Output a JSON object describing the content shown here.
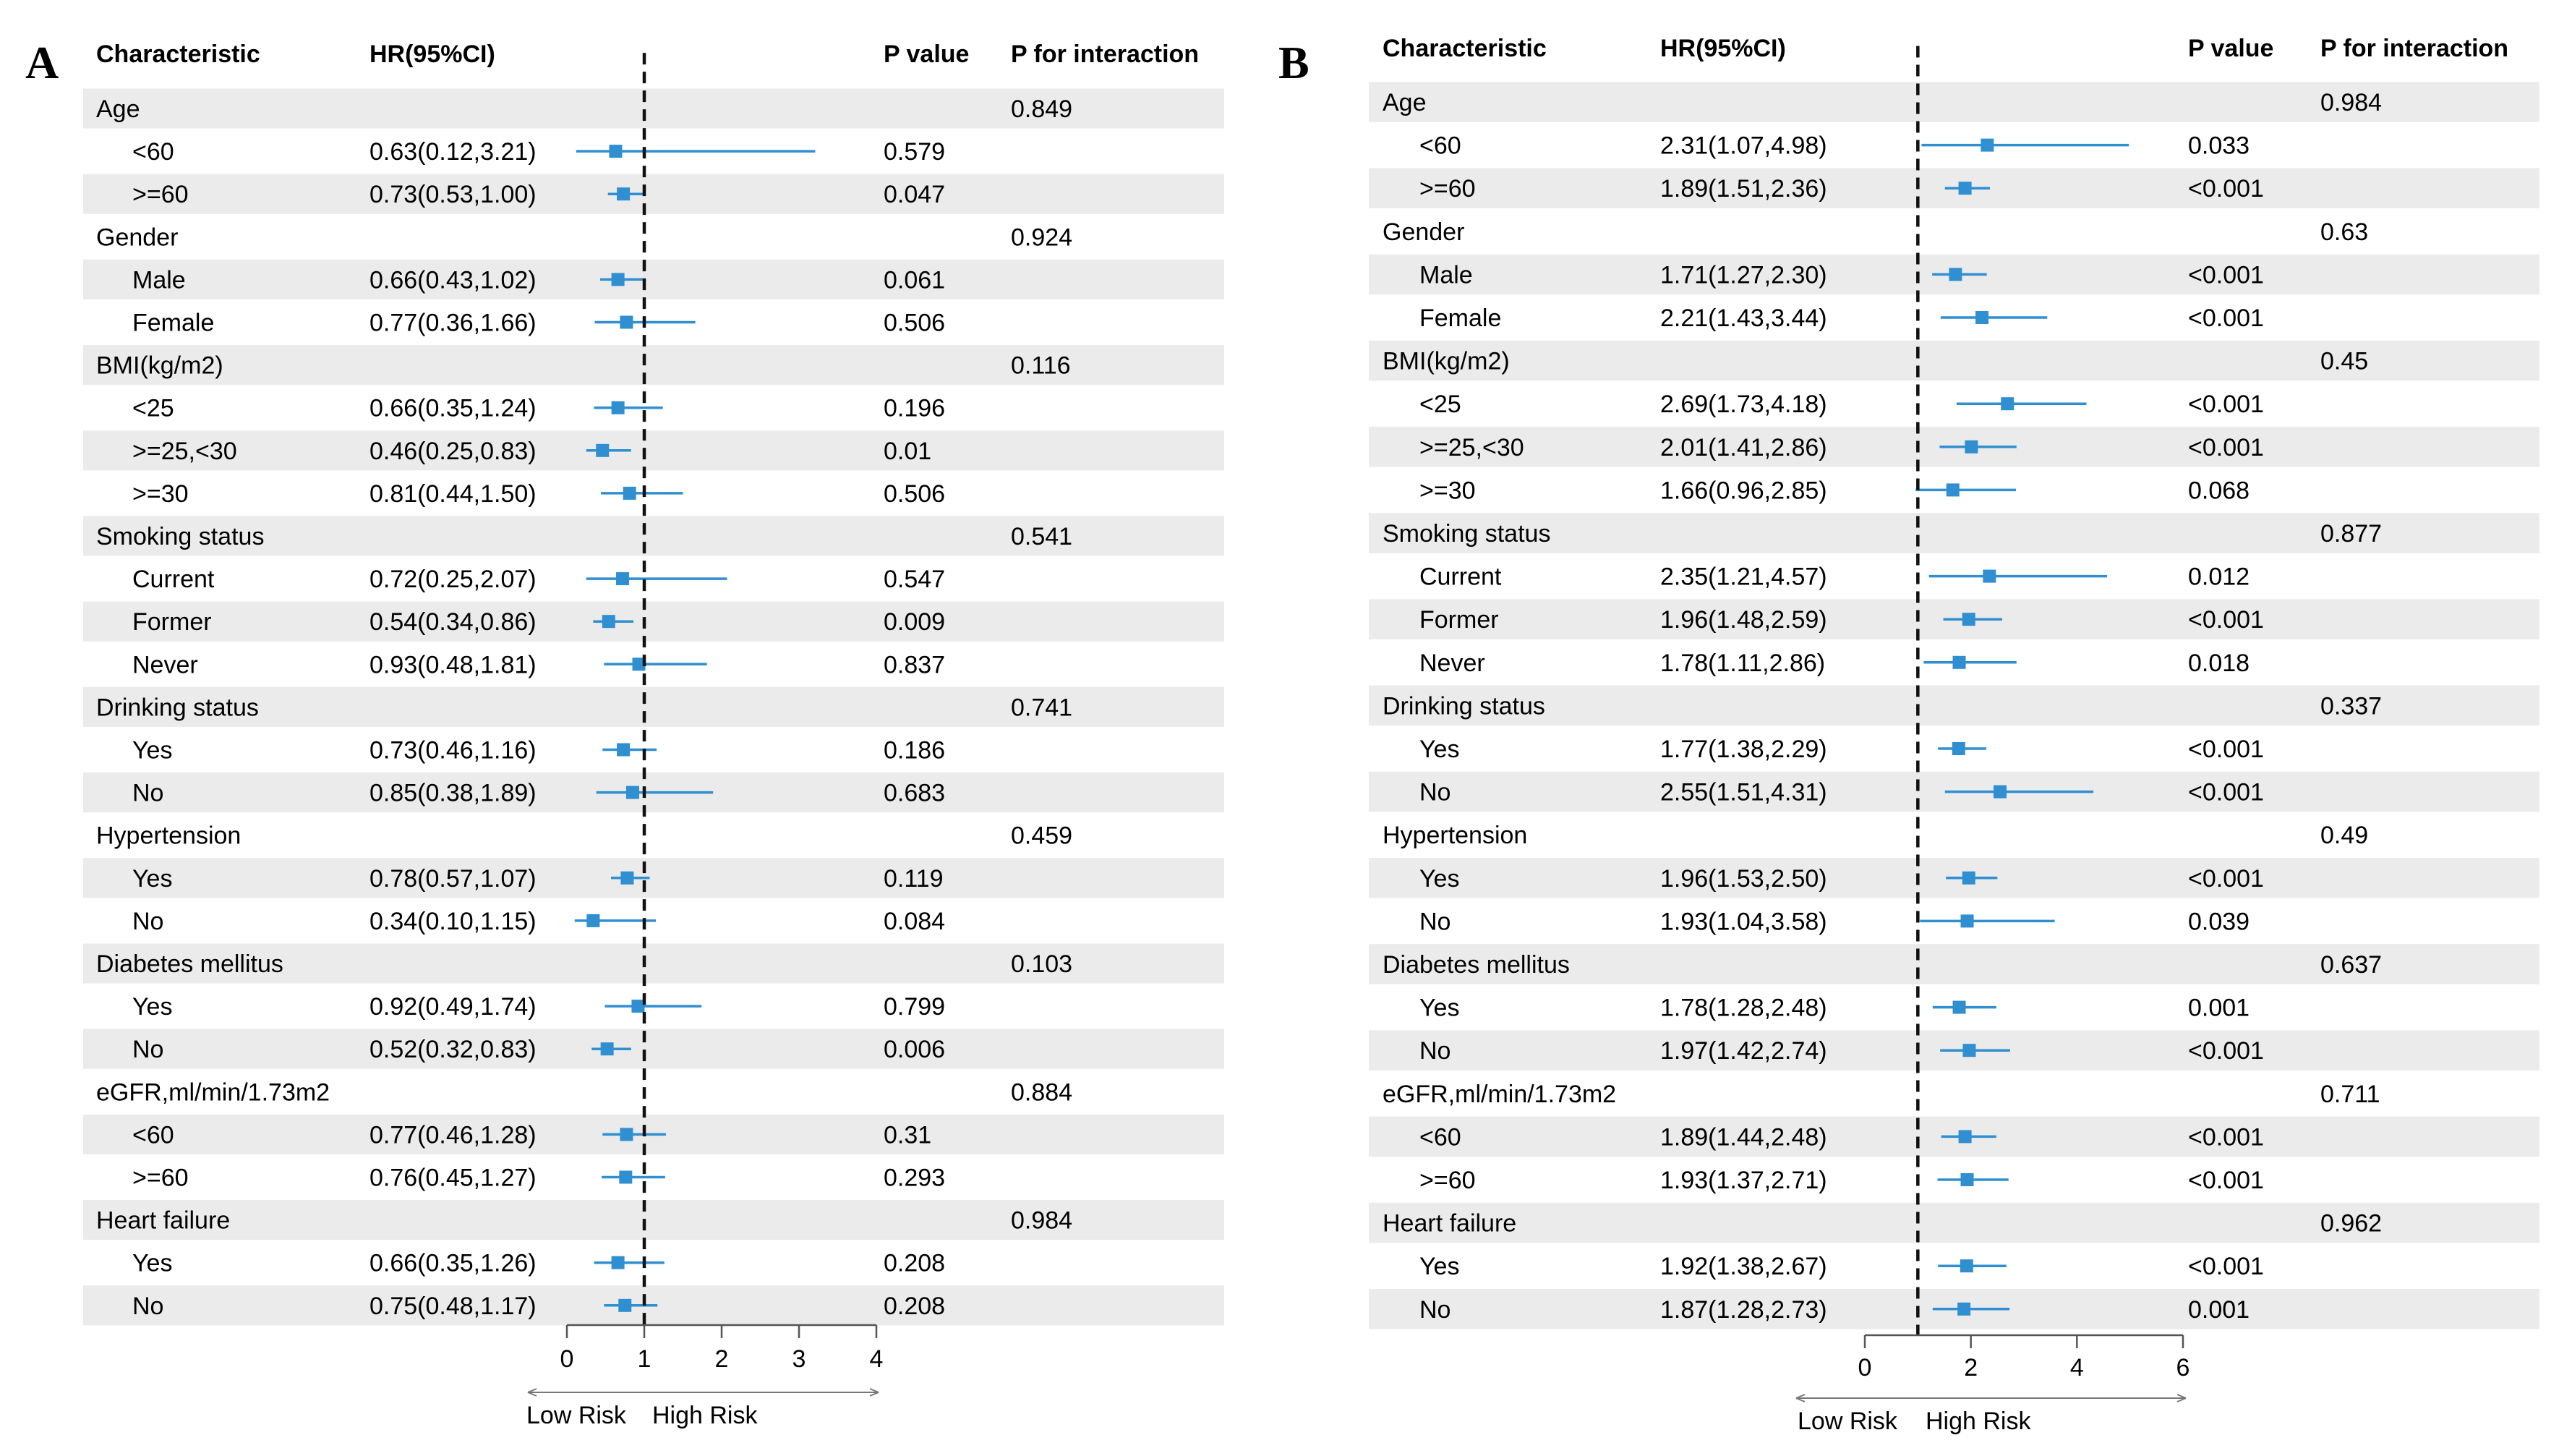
{
  "figure": {
    "marker_color": "#2f8fd0",
    "stripe_color": "#ebebeb",
    "ref_line": 1
  },
  "chart_data": [
    {
      "type": "forest",
      "panel_label": "A",
      "columns": {
        "characteristic": "Characteristic",
        "hr": "HR(95%CI)",
        "p": "P value",
        "pint": "P for interaction"
      },
      "xaxis": {
        "ticks": [
          0,
          1,
          2,
          3,
          4
        ],
        "xlim": [
          0,
          4
        ],
        "low_label": "Low Risk",
        "high_label": "High Risk"
      },
      "rows": [
        {
          "label": "Age",
          "group": true,
          "pint": "0.849"
        },
        {
          "label": "<60",
          "hr_text": "0.63(0.12,3.21)",
          "hr": 0.63,
          "lo": 0.12,
          "hi": 3.21,
          "p": "0.579"
        },
        {
          "label": ">=60",
          "hr_text": "0.73(0.53,1.00)",
          "hr": 0.73,
          "lo": 0.53,
          "hi": 1.0,
          "p": "0.047"
        },
        {
          "label": "Gender",
          "group": true,
          "pint": "0.924"
        },
        {
          "label": "Male",
          "hr_text": "0.66(0.43,1.02)",
          "hr": 0.66,
          "lo": 0.43,
          "hi": 1.02,
          "p": "0.061"
        },
        {
          "label": "Female",
          "hr_text": "0.77(0.36,1.66)",
          "hr": 0.77,
          "lo": 0.36,
          "hi": 1.66,
          "p": "0.506"
        },
        {
          "label": "BMI(kg/m2)",
          "group": true,
          "pint": "0.116"
        },
        {
          "label": "<25",
          "hr_text": "0.66(0.35,1.24)",
          "hr": 0.66,
          "lo": 0.35,
          "hi": 1.24,
          "p": "0.196"
        },
        {
          "label": ">=25,<30",
          "hr_text": "0.46(0.25,0.83)",
          "hr": 0.46,
          "lo": 0.25,
          "hi": 0.83,
          "p": "0.01"
        },
        {
          "label": ">=30",
          "hr_text": "0.81(0.44,1.50)",
          "hr": 0.81,
          "lo": 0.44,
          "hi": 1.5,
          "p": "0.506"
        },
        {
          "label": "Smoking status",
          "group": true,
          "pint": "0.541"
        },
        {
          "label": "Current",
          "hr_text": "0.72(0.25,2.07)",
          "hr": 0.72,
          "lo": 0.25,
          "hi": 2.07,
          "p": "0.547"
        },
        {
          "label": "Former",
          "hr_text": "0.54(0.34,0.86)",
          "hr": 0.54,
          "lo": 0.34,
          "hi": 0.86,
          "p": "0.009"
        },
        {
          "label": "Never",
          "hr_text": "0.93(0.48,1.81)",
          "hr": 0.93,
          "lo": 0.48,
          "hi": 1.81,
          "p": "0.837"
        },
        {
          "label": "Drinking status",
          "group": true,
          "pint": "0.741"
        },
        {
          "label": "Yes",
          "hr_text": "0.73(0.46,1.16)",
          "hr": 0.73,
          "lo": 0.46,
          "hi": 1.16,
          "p": "0.186"
        },
        {
          "label": "No",
          "hr_text": "0.85(0.38,1.89)",
          "hr": 0.85,
          "lo": 0.38,
          "hi": 1.89,
          "p": "0.683"
        },
        {
          "label": "Hypertension",
          "group": true,
          "pint": "0.459"
        },
        {
          "label": "Yes",
          "hr_text": "0.78(0.57,1.07)",
          "hr": 0.78,
          "lo": 0.57,
          "hi": 1.07,
          "p": "0.119"
        },
        {
          "label": "No",
          "hr_text": "0.34(0.10,1.15)",
          "hr": 0.34,
          "lo": 0.1,
          "hi": 1.15,
          "p": "0.084"
        },
        {
          "label": "Diabetes mellitus",
          "group": true,
          "pint": "0.103"
        },
        {
          "label": "Yes",
          "hr_text": "0.92(0.49,1.74)",
          "hr": 0.92,
          "lo": 0.49,
          "hi": 1.74,
          "p": "0.799"
        },
        {
          "label": "No",
          "hr_text": "0.52(0.32,0.83)",
          "hr": 0.52,
          "lo": 0.32,
          "hi": 0.83,
          "p": "0.006"
        },
        {
          "label": "eGFR,ml/min/1.73m2",
          "group": true,
          "pint": "0.884"
        },
        {
          "label": "<60",
          "hr_text": "0.77(0.46,1.28)",
          "hr": 0.77,
          "lo": 0.46,
          "hi": 1.28,
          "p": "0.31"
        },
        {
          "label": ">=60",
          "hr_text": "0.76(0.45,1.27)",
          "hr": 0.76,
          "lo": 0.45,
          "hi": 1.27,
          "p": "0.293"
        },
        {
          "label": "Heart failure",
          "group": true,
          "pint": "0.984"
        },
        {
          "label": "Yes",
          "hr_text": "0.66(0.35,1.26)",
          "hr": 0.66,
          "lo": 0.35,
          "hi": 1.26,
          "p": "0.208"
        },
        {
          "label": "No",
          "hr_text": "0.75(0.48,1.17)",
          "hr": 0.75,
          "lo": 0.48,
          "hi": 1.17,
          "p": "0.208"
        }
      ]
    },
    {
      "type": "forest",
      "panel_label": "B",
      "columns": {
        "characteristic": "Characteristic",
        "hr": "HR(95%CI)",
        "p": "P value",
        "pint": "P for interaction"
      },
      "xaxis": {
        "ticks": [
          0,
          2,
          4,
          6
        ],
        "xlim": [
          0,
          6
        ],
        "low_label": "Low Risk",
        "high_label": "High Risk"
      },
      "rows": [
        {
          "label": "Age",
          "group": true,
          "pint": "0.984"
        },
        {
          "label": "<60",
          "hr_text": "2.31(1.07,4.98)",
          "hr": 2.31,
          "lo": 1.07,
          "hi": 4.98,
          "p": "0.033"
        },
        {
          "label": ">=60",
          "hr_text": "1.89(1.51,2.36)",
          "hr": 1.89,
          "lo": 1.51,
          "hi": 2.36,
          "p": "<0.001"
        },
        {
          "label": "Gender",
          "group": true,
          "pint": "0.63"
        },
        {
          "label": "Male",
          "hr_text": "1.71(1.27,2.30)",
          "hr": 1.71,
          "lo": 1.27,
          "hi": 2.3,
          "p": "<0.001"
        },
        {
          "label": "Female",
          "hr_text": "2.21(1.43,3.44)",
          "hr": 2.21,
          "lo": 1.43,
          "hi": 3.44,
          "p": "<0.001"
        },
        {
          "label": "BMI(kg/m2)",
          "group": true,
          "pint": "0.45"
        },
        {
          "label": "<25",
          "hr_text": "2.69(1.73,4.18)",
          "hr": 2.69,
          "lo": 1.73,
          "hi": 4.18,
          "p": "<0.001"
        },
        {
          "label": ">=25,<30",
          "hr_text": "2.01(1.41,2.86)",
          "hr": 2.01,
          "lo": 1.41,
          "hi": 2.86,
          "p": "<0.001"
        },
        {
          "label": ">=30",
          "hr_text": "1.66(0.96,2.85)",
          "hr": 1.66,
          "lo": 0.96,
          "hi": 2.85,
          "p": "0.068"
        },
        {
          "label": "Smoking status",
          "group": true,
          "pint": "0.877"
        },
        {
          "label": "Current",
          "hr_text": "2.35(1.21,4.57)",
          "hr": 2.35,
          "lo": 1.21,
          "hi": 4.57,
          "p": "0.012"
        },
        {
          "label": "Former",
          "hr_text": "1.96(1.48,2.59)",
          "hr": 1.96,
          "lo": 1.48,
          "hi": 2.59,
          "p": "<0.001"
        },
        {
          "label": "Never",
          "hr_text": "1.78(1.11,2.86)",
          "hr": 1.78,
          "lo": 1.11,
          "hi": 2.86,
          "p": "0.018"
        },
        {
          "label": "Drinking status",
          "group": true,
          "pint": "0.337"
        },
        {
          "label": "Yes",
          "hr_text": "1.77(1.38,2.29)",
          "hr": 1.77,
          "lo": 1.38,
          "hi": 2.29,
          "p": "<0.001"
        },
        {
          "label": "No",
          "hr_text": "2.55(1.51,4.31)",
          "hr": 2.55,
          "lo": 1.51,
          "hi": 4.31,
          "p": "<0.001"
        },
        {
          "label": "Hypertension",
          "group": true,
          "pint": "0.49"
        },
        {
          "label": "Yes",
          "hr_text": "1.96(1.53,2.50)",
          "hr": 1.96,
          "lo": 1.53,
          "hi": 2.5,
          "p": "<0.001"
        },
        {
          "label": "No",
          "hr_text": "1.93(1.04,3.58)",
          "hr": 1.93,
          "lo": 1.04,
          "hi": 3.58,
          "p": "0.039"
        },
        {
          "label": "Diabetes mellitus",
          "group": true,
          "pint": "0.637"
        },
        {
          "label": "Yes",
          "hr_text": "1.78(1.28,2.48)",
          "hr": 1.78,
          "lo": 1.28,
          "hi": 2.48,
          "p": "0.001"
        },
        {
          "label": "No",
          "hr_text": "1.97(1.42,2.74)",
          "hr": 1.97,
          "lo": 1.42,
          "hi": 2.74,
          "p": "<0.001"
        },
        {
          "label": "eGFR,ml/min/1.73m2",
          "group": true,
          "pint": "0.711"
        },
        {
          "label": "<60",
          "hr_text": "1.89(1.44,2.48)",
          "hr": 1.89,
          "lo": 1.44,
          "hi": 2.48,
          "p": "<0.001"
        },
        {
          "label": ">=60",
          "hr_text": "1.93(1.37,2.71)",
          "hr": 1.93,
          "lo": 1.37,
          "hi": 2.71,
          "p": "<0.001"
        },
        {
          "label": "Heart failure",
          "group": true,
          "pint": "0.962"
        },
        {
          "label": "Yes",
          "hr_text": "1.92(1.38,2.67)",
          "hr": 1.92,
          "lo": 1.38,
          "hi": 2.67,
          "p": "<0.001"
        },
        {
          "label": "No",
          "hr_text": "1.87(1.28,2.73)",
          "hr": 1.87,
          "lo": 1.28,
          "hi": 2.73,
          "p": "0.001"
        }
      ]
    }
  ]
}
